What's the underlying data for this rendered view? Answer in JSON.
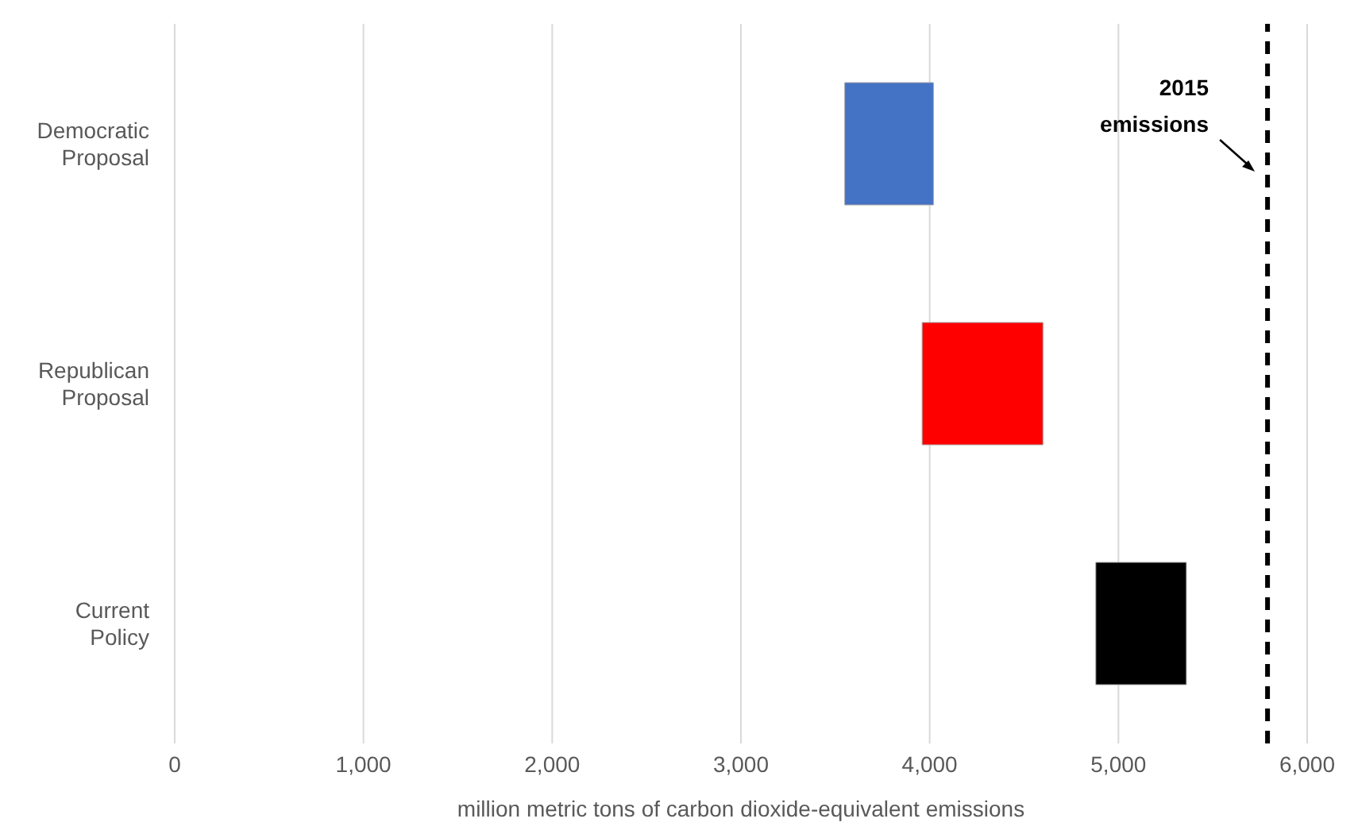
{
  "chart_data": {
    "type": "bar",
    "orientation": "horizontal",
    "xlabel": "million metric tons of carbon dioxide-equivalent emissions",
    "categories": [
      "Democratic Proposal",
      "Republican Proposal",
      "Current Policy"
    ],
    "base": [
      3550,
      3960,
      4880
    ],
    "values": [
      470,
      640,
      480
    ],
    "colors": [
      "#4472c4",
      "#ff0000",
      "#000000"
    ],
    "xlim": [
      0,
      6000
    ],
    "xticks": [
      {
        "value": 0,
        "label": "0"
      },
      {
        "value": 1000,
        "label": "1,000"
      },
      {
        "value": 2000,
        "label": "2,000"
      },
      {
        "value": 3000,
        "label": "3,000"
      },
      {
        "value": 4000,
        "label": "4,000"
      },
      {
        "value": 5000,
        "label": "5,000"
      },
      {
        "value": 6000,
        "label": "6,000"
      }
    ],
    "grid": "x",
    "legend": false,
    "ref_lines": [
      {
        "axis": "x",
        "value": 5790,
        "label": "2015 emissions",
        "color": "#000000",
        "line_style": "dashed"
      }
    ]
  }
}
